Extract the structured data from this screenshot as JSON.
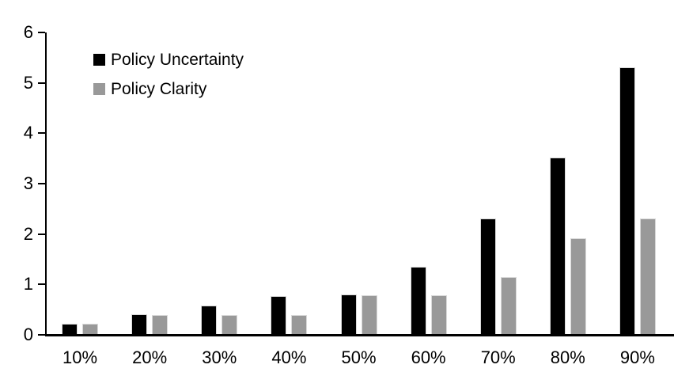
{
  "chart_data": {
    "type": "bar",
    "title": "",
    "xlabel": "",
    "ylabel": "",
    "categories": [
      "10%",
      "20%",
      "30%",
      "40%",
      "50%",
      "60%",
      "70%",
      "80%",
      "90%"
    ],
    "series": [
      {
        "name": "Policy Uncertainty",
        "color": "#000000",
        "values": [
          0.2,
          0.4,
          0.57,
          0.76,
          0.78,
          1.33,
          2.3,
          3.5,
          5.3
        ]
      },
      {
        "name": "Policy Clarity",
        "color": "#999999",
        "values": [
          0.2,
          0.38,
          0.38,
          0.38,
          0.77,
          0.77,
          1.13,
          1.9,
          2.3
        ]
      }
    ],
    "ylim": [
      0,
      6
    ],
    "yticks": [
      0,
      1,
      2,
      3,
      4,
      5,
      6
    ],
    "grid": false,
    "legend_position": "inside-top-left",
    "bar_border_color": "#d9d9d9",
    "axis_color": "#000000",
    "background_color": "#ffffff"
  }
}
